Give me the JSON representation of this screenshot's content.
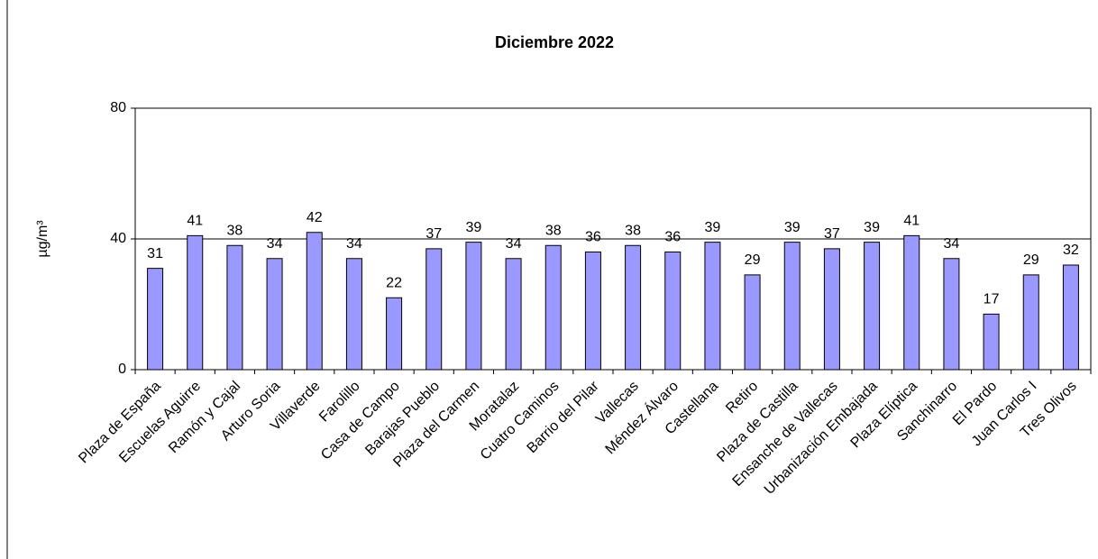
{
  "chart_data": {
    "type": "bar",
    "title": "Diciembre 2022",
    "y_label": "µg/m³",
    "categories": [
      "Plaza de España",
      "Escuelas Aguirre",
      "Ramón y Cajal",
      "Arturo Soria",
      "Villaverde",
      "Farolillo",
      "Casa de Campo",
      "Barajas Pueblo",
      "Plaza del Carmen",
      "Moratalaz",
      "Cuatro Caminos",
      "Barrio del Pilar",
      "Vallecas",
      "Méndez Álvaro",
      "Castellana",
      "Retiro",
      "Plaza de Castilla",
      "Ensanche de Vallecas",
      "Urbanización Embajada",
      "Plaza Elíptica",
      "Sanchinarro",
      "El Pardo",
      "Juan Carlos I",
      "Tres Olivos"
    ],
    "values": [
      31,
      41,
      38,
      34,
      42,
      34,
      22,
      37,
      39,
      34,
      38,
      36,
      38,
      36,
      39,
      29,
      39,
      37,
      39,
      41,
      34,
      17,
      29,
      32
    ],
    "color": "#9999ff",
    "ylim": [
      0,
      80
    ],
    "yticks": [
      0,
      40,
      80
    ],
    "grid": true
  }
}
